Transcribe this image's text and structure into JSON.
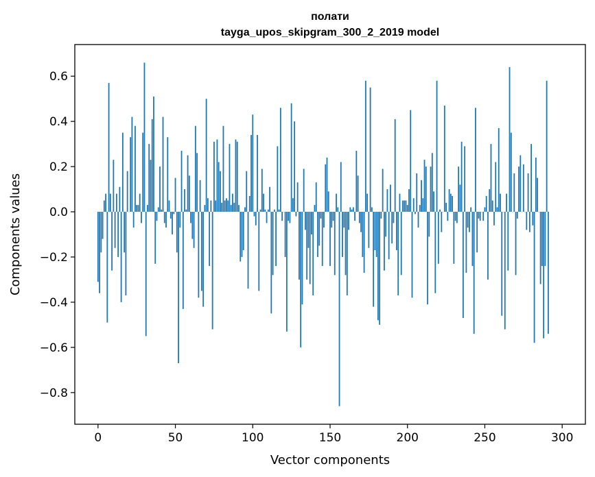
{
  "chart_data": {
    "type": "bar",
    "title": "полати",
    "subtitle": "tayga_upos_skipgram_300_2_2019 model",
    "xlabel": "Vector components",
    "ylabel": "Components values",
    "xlim": [
      -15,
      315
    ],
    "ylim": [
      -0.94,
      0.74
    ],
    "xticks": [
      0,
      50,
      100,
      150,
      200,
      250,
      300
    ],
    "yticks": [
      -0.8,
      -0.6,
      -0.4,
      -0.2,
      0.0,
      0.2,
      0.4,
      0.6
    ],
    "ytick_labels": [
      "−0.8",
      "−0.6",
      "−0.4",
      "−0.2",
      "0.0",
      "0.2",
      "0.4",
      "0.6"
    ],
    "xtick_labels": [
      "0",
      "50",
      "100",
      "150",
      "200",
      "250",
      "300"
    ],
    "bar_color": "#1f77b4",
    "grid": false,
    "values": [
      -0.31,
      -0.36,
      -0.18,
      -0.12,
      0.05,
      0.08,
      -0.49,
      0.57,
      0.08,
      -0.26,
      0.23,
      -0.16,
      0.08,
      -0.2,
      0.11,
      -0.4,
      0.35,
      -0.18,
      -0.37,
      0.18,
      0.0,
      0.33,
      0.42,
      -0.07,
      0.38,
      0.03,
      0.03,
      0.08,
      -0.05,
      0.35,
      0.66,
      -0.55,
      0.03,
      0.3,
      0.23,
      0.41,
      0.51,
      -0.23,
      -0.04,
      0.02,
      0.2,
      0.01,
      0.42,
      -0.05,
      -0.07,
      0.33,
      0.05,
      -0.03,
      -0.1,
      -0.01,
      0.15,
      -0.18,
      -0.67,
      -0.07,
      0.27,
      -0.43,
      0.1,
      0.01,
      0.25,
      0.16,
      -0.05,
      -0.12,
      -0.16,
      0.38,
      0.26,
      -0.38,
      0.14,
      -0.35,
      -0.42,
      0.03,
      0.5,
      0.06,
      -0.24,
      0.05,
      -0.52,
      0.31,
      0.05,
      0.32,
      0.22,
      0.18,
      0.04,
      0.38,
      0.05,
      0.06,
      0.05,
      0.3,
      0.03,
      0.08,
      0.04,
      0.32,
      0.31,
      0.03,
      -0.22,
      -0.2,
      -0.17,
      0.02,
      0.18,
      -0.34,
      0.07,
      0.34,
      0.43,
      -0.02,
      -0.06,
      0.34,
      -0.35,
      0.01,
      0.19,
      0.08,
      0.01,
      -0.05,
      0.01,
      0.11,
      -0.45,
      -0.28,
      0.01,
      -0.24,
      0.29,
      0.01,
      0.46,
      -0.04,
      0.0,
      -0.2,
      -0.53,
      -0.04,
      -0.05,
      0.48,
      0.06,
      0.4,
      -0.02,
      0.13,
      -0.3,
      -0.6,
      -0.41,
      0.19,
      -0.08,
      -0.3,
      -0.16,
      -0.32,
      -0.1,
      -0.37,
      0.03,
      0.13,
      -0.2,
      -0.15,
      -0.03,
      -0.24,
      -0.07,
      0.21,
      0.24,
      0.09,
      -0.24,
      -0.07,
      -0.04,
      -0.28,
      0.08,
      0.02,
      -0.86,
      0.22,
      -0.2,
      -0.07,
      -0.28,
      -0.37,
      -0.08,
      0.02,
      0.01,
      0.02,
      -0.04,
      0.27,
      0.16,
      -0.05,
      -0.09,
      -0.2,
      -0.27,
      0.58,
      0.08,
      -0.16,
      0.55,
      0.02,
      -0.42,
      -0.17,
      -0.2,
      -0.48,
      -0.5,
      -0.03,
      0.19,
      -0.26,
      -0.11,
      0.1,
      -0.21,
      0.12,
      -0.14,
      -0.05,
      0.41,
      -0.17,
      -0.37,
      0.08,
      -0.28,
      0.05,
      0.05,
      0.05,
      0.03,
      0.1,
      0.45,
      -0.38,
      0.06,
      -0.01,
      0.17,
      -0.07,
      0.03,
      0.14,
      0.06,
      0.23,
      0.2,
      -0.41,
      -0.11,
      0.2,
      0.26,
      0.09,
      -0.36,
      0.58,
      -0.23,
      0.01,
      -0.09,
      0.0,
      0.47,
      0.04,
      -0.04,
      0.1,
      0.08,
      0.07,
      -0.23,
      -0.04,
      -0.05,
      0.2,
      0.12,
      0.31,
      -0.47,
      0.29,
      -0.27,
      -0.07,
      -0.09,
      0.02,
      -0.24,
      -0.54,
      0.46,
      -0.18,
      -0.03,
      -0.04,
      0.0,
      -0.04,
      0.02,
      0.07,
      -0.3,
      0.1,
      0.3,
      0.05,
      -0.06,
      0.22,
      0.02,
      0.37,
      0.08,
      -0.46,
      0.0,
      -0.52,
      0.08,
      -0.26,
      0.64,
      0.35,
      0.0,
      0.17,
      -0.28,
      -0.03,
      0.2,
      0.25,
      0.0,
      0.21,
      0.0,
      -0.08,
      0.17,
      -0.09,
      0.3,
      -0.06,
      -0.58,
      0.24,
      0.15,
      0.0,
      -0.32,
      -0.24,
      -0.56,
      -0.24,
      0.58,
      -0.54
    ]
  }
}
